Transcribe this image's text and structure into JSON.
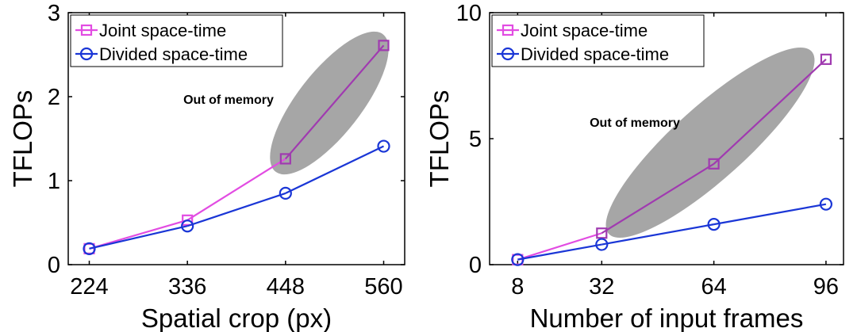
{
  "chart_data": [
    {
      "type": "line",
      "xlabel": "Spatial crop (px)",
      "ylabel": "TFLOPs",
      "x": [
        224,
        336,
        448,
        560
      ],
      "xticks": [
        "224",
        "336",
        "448",
        "560"
      ],
      "yticks": [
        "0",
        "1",
        "2",
        "3"
      ],
      "xlim": [
        200,
        584
      ],
      "ylim": [
        0,
        3
      ],
      "grid": false,
      "legend": "top-left",
      "annotation": "Out of memory",
      "series": [
        {
          "name": "Joint space-time",
          "values": [
            0.19,
            0.53,
            1.26,
            2.61
          ],
          "color": "#e24ce2",
          "shaded_color": "#a03ab0",
          "marker": "square",
          "out_of_memory_from": 448
        },
        {
          "name": "Divided space-time",
          "values": [
            0.19,
            0.46,
            0.85,
            1.41
          ],
          "color": "#1a36d6",
          "marker": "circle"
        }
      ]
    },
    {
      "type": "line",
      "xlabel": "Number of input frames",
      "ylabel": "TFLOPs",
      "x": [
        8,
        32,
        64,
        96
      ],
      "xticks": [
        "8",
        "32",
        "64",
        "96"
      ],
      "yticks": [
        "0",
        "5",
        "10"
      ],
      "xlim": [
        0,
        101
      ],
      "ylim": [
        0,
        10
      ],
      "grid": false,
      "legend": "top-left",
      "annotation": "Out of memory",
      "series": [
        {
          "name": "Joint space-time",
          "values": [
            0.2,
            1.25,
            4.0,
            8.15
          ],
          "color": "#e24ce2",
          "shaded_color": "#a03ab0",
          "marker": "square",
          "out_of_memory_from": 32
        },
        {
          "name": "Divided space-time",
          "values": [
            0.2,
            0.8,
            1.6,
            2.4
          ],
          "color": "#1a36d6",
          "marker": "circle"
        }
      ]
    }
  ]
}
